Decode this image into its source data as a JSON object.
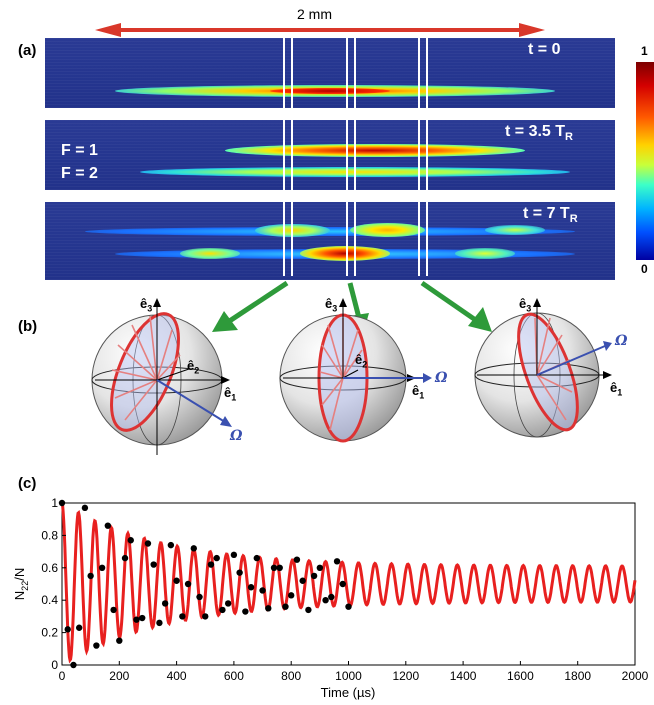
{
  "top": {
    "label_a": "(a)",
    "scale_label": "2 mm",
    "panel1_time": "t = 0",
    "panel2_time_prefix": "t = 3.5 T",
    "panel2_time_sub": "R",
    "panel3_time_prefix": "t = 7 T",
    "panel3_time_sub": "R",
    "f1_label": "F = 1",
    "f2_label": "F = 2",
    "colorbar_max": "1",
    "colorbar_min": "0",
    "colors": {
      "background": "#25368f",
      "arrow": "#d9372a",
      "green_arrow": "#2e9a3a"
    }
  },
  "middle": {
    "label_b": "(b)",
    "e1": "ê",
    "e1_sub": "1",
    "e2": "ê",
    "e2_sub": "2",
    "e3": "ê",
    "e3_sub": "3",
    "omega": "Ω",
    "icons": [
      "bloch-sphere-icon",
      "bloch-sphere-icon",
      "bloch-sphere-icon"
    ]
  },
  "bottom": {
    "label_c": "(c)",
    "chart_data": {
      "type": "line",
      "xlabel": "Time (µs)",
      "ylabel": "N22/N",
      "ylabel_main": "N",
      "ylabel_sub": "22",
      "ylabel_tail": "/N",
      "xlim": [
        0,
        2000
      ],
      "ylim": [
        0,
        1
      ],
      "x_ticks": [
        "0",
        "200",
        "400",
        "600",
        "800",
        "1000",
        "1200",
        "1400",
        "1600",
        "1800",
        "2000"
      ],
      "y_ticks": [
        "0",
        "0.2",
        "0.4",
        "0.6",
        "0.8",
        "1"
      ],
      "series": [
        {
          "kind": "fit-line",
          "color": "#e8201f",
          "model": {
            "offset": 0.5,
            "amplitude": 0.5,
            "long_time_amplitude": 0.11,
            "decay_time_us": 350,
            "period_us": 57.5
          },
          "x_range": [
            0,
            2000
          ]
        },
        {
          "kind": "points",
          "color": "#000000",
          "x": [
            0,
            20,
            40,
            60,
            80,
            100,
            120,
            140,
            160,
            180,
            200,
            220,
            240,
            260,
            280,
            300,
            320,
            340,
            360,
            380,
            400,
            420,
            440,
            460,
            480,
            500,
            520,
            540,
            560,
            580,
            600,
            620,
            640,
            660,
            680,
            700,
            720,
            740,
            760,
            780,
            800,
            820,
            840,
            860,
            880,
            900,
            920,
            940,
            960,
            980,
            1000
          ],
          "y": [
            1.0,
            0.22,
            0.0,
            0.23,
            0.97,
            0.55,
            0.12,
            0.6,
            0.86,
            0.34,
            0.15,
            0.66,
            0.77,
            0.28,
            0.29,
            0.75,
            0.62,
            0.26,
            0.38,
            0.74,
            0.52,
            0.3,
            0.5,
            0.72,
            0.42,
            0.3,
            0.62,
            0.66,
            0.34,
            0.38,
            0.68,
            0.57,
            0.33,
            0.48,
            0.66,
            0.46,
            0.35,
            0.6,
            0.6,
            0.36,
            0.43,
            0.65,
            0.52,
            0.34,
            0.55,
            0.6,
            0.4,
            0.42,
            0.64,
            0.5,
            0.36
          ]
        }
      ]
    }
  }
}
